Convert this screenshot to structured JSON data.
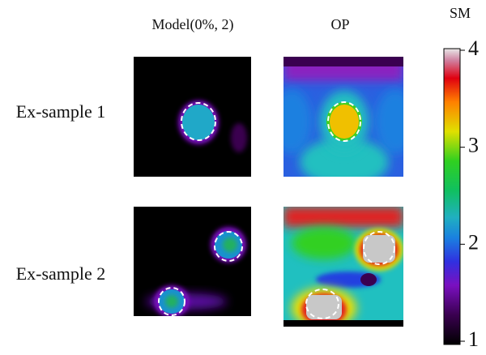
{
  "columns": [
    "Model(0%, 2)",
    "OP"
  ],
  "rows": [
    "Ex-sample 1",
    "Ex-sample 2"
  ],
  "colorbar": {
    "label": "SM",
    "lim": [
      1,
      4
    ],
    "ticks": [
      1,
      2,
      3,
      4
    ]
  }
}
